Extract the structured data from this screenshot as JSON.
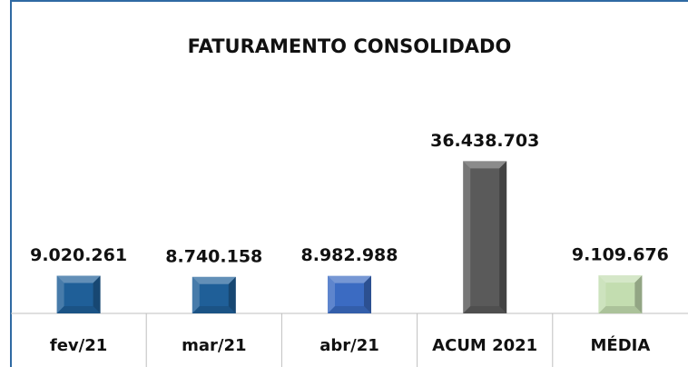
{
  "chart_data": {
    "type": "bar",
    "title": "FATURAMENTO CONSOLIDADO",
    "categories": [
      "fev/21",
      "mar/21",
      "abr/21",
      "ACUM 2021",
      "MÉDIA"
    ],
    "values": [
      9020261,
      8740158,
      8982988,
      36438703,
      9109676
    ],
    "value_labels": [
      "9.020.261",
      "8.740.158",
      "8.982.988",
      "36.438.703",
      "9.109.676"
    ],
    "colors": [
      "#1f5f98",
      "#1f5f98",
      "#3b6bc2",
      "#5a5a5a",
      "#c3ddb0"
    ],
    "ylim": [
      0,
      40000000
    ]
  }
}
